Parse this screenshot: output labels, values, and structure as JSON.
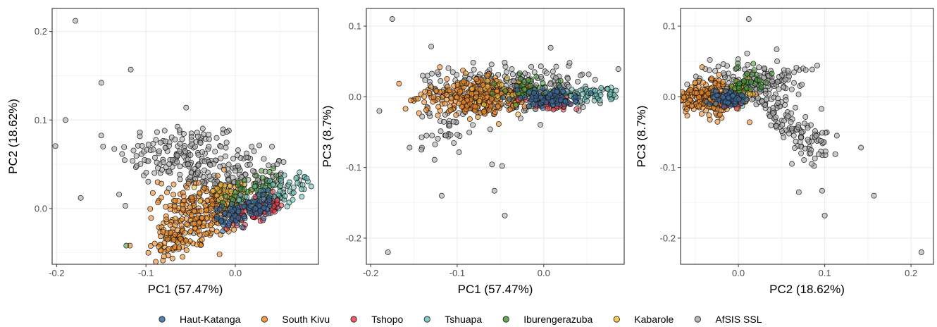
{
  "chart_data": {
    "type": "scatter",
    "legend": {
      "position": "bottom",
      "entries": [
        {
          "name": "Haut-Katanga",
          "color": "#3b6aa0"
        },
        {
          "name": "South Kivu",
          "color": "#f08a24"
        },
        {
          "name": "Tshopo",
          "color": "#e8414f"
        },
        {
          "name": "Tshuapa",
          "color": "#6cc0b8"
        },
        {
          "name": "Iburengerazuba",
          "color": "#4a9a3a"
        },
        {
          "name": "Kabarole",
          "color": "#f2be3a"
        },
        {
          "name": "AfSIS SSL",
          "color": "#a9a9a9"
        }
      ]
    },
    "panels": [
      {
        "xlabel": "PC1 (57.47%)",
        "ylabel": "PC2 (18.62%)",
        "xlim": [
          -0.205,
          0.093
        ],
        "ylim": [
          -0.063,
          0.226
        ],
        "xticks": [
          -0.2,
          -0.1,
          0.0
        ],
        "xtick_labels": [
          "-0.2",
          "-0.1",
          "0.0"
        ],
        "yticks": [
          0.0,
          0.1,
          0.2
        ],
        "ytick_labels": [
          "0.0",
          "0.1",
          "0.2"
        ],
        "grid": true,
        "clusters": [
          {
            "series": "AfSIS SSL",
            "kind": "cloud",
            "center": [
              -0.06,
              0.062
            ],
            "spread": [
              0.035,
              0.018
            ],
            "n": 160
          },
          {
            "series": "AfSIS SSL",
            "kind": "cloud",
            "center": [
              0.0,
              0.035
            ],
            "spread": [
              0.03,
              0.015
            ],
            "n": 120
          },
          {
            "series": "South Kivu",
            "kind": "band",
            "from": [
              -0.09,
              -0.042
            ],
            "to": [
              0.0,
              0.01
            ],
            "width": 0.016,
            "n": 260
          },
          {
            "series": "South Kivu",
            "kind": "cloud",
            "center": [
              -0.045,
              0.01
            ],
            "spread": [
              0.02,
              0.012
            ],
            "n": 60
          },
          {
            "series": "Kabarole",
            "kind": "cloud",
            "center": [
              -0.01,
              0.015
            ],
            "spread": [
              0.015,
              0.008
            ],
            "n": 40
          },
          {
            "series": "Iburengerazuba",
            "kind": "band",
            "from": [
              -0.01,
              0.01
            ],
            "to": [
              0.05,
              0.028
            ],
            "width": 0.01,
            "n": 60
          },
          {
            "series": "Tshuapa",
            "kind": "band",
            "from": [
              0.0,
              0.0
            ],
            "to": [
              0.08,
              0.028
            ],
            "width": 0.008,
            "n": 90
          },
          {
            "series": "Tshopo",
            "kind": "band",
            "from": [
              -0.005,
              -0.012
            ],
            "to": [
              0.05,
              0.005
            ],
            "width": 0.007,
            "n": 70
          },
          {
            "series": "Haut-Katanga",
            "kind": "band",
            "from": [
              -0.02,
              -0.01
            ],
            "to": [
              0.04,
              0.008
            ],
            "width": 0.008,
            "n": 90
          }
        ],
        "points": [
          {
            "series": "AfSIS SSL",
            "x": -0.179,
            "y": 0.212
          },
          {
            "series": "AfSIS SSL",
            "x": -0.19,
            "y": 0.1
          },
          {
            "series": "AfSIS SSL",
            "x": -0.15,
            "y": 0.142
          },
          {
            "series": "AfSIS SSL",
            "x": -0.117,
            "y": 0.157
          },
          {
            "series": "AfSIS SSL",
            "x": -0.173,
            "y": 0.012
          },
          {
            "series": "AfSIS SSL",
            "x": -0.148,
            "y": 0.07
          },
          {
            "series": "AfSIS SSL",
            "x": -0.13,
            "y": 0.016
          },
          {
            "series": "AfSIS SSL",
            "x": -0.055,
            "y": 0.114
          },
          {
            "series": "AfSIS SSL",
            "x": -0.123,
            "y": 0.003
          },
          {
            "series": "South Kivu",
            "x": -0.118,
            "y": -0.042
          },
          {
            "series": "Iburengerazuba",
            "x": -0.122,
            "y": -0.042
          },
          {
            "series": "Tshuapa",
            "x": 0.085,
            "y": 0.025
          },
          {
            "series": "Tshuapa",
            "x": 0.08,
            "y": 0.034
          }
        ]
      },
      {
        "xlabel": "PC1 (57.47%)",
        "ylabel": "PC3 (8.7%)",
        "xlim": [
          -0.205,
          0.093
        ],
        "ylim": [
          -0.237,
          0.125
        ],
        "xticks": [
          -0.2,
          -0.1,
          0.0
        ],
        "xtick_labels": [
          "-0.2",
          "-0.1",
          "0.0"
        ],
        "yticks": [
          -0.2,
          -0.1,
          0.0,
          0.1
        ],
        "ytick_labels": [
          "-0.2",
          "-0.1",
          "0.0",
          "0.1"
        ],
        "grid": true,
        "clusters": [
          {
            "series": "AfSIS SSL",
            "kind": "cloud",
            "center": [
              -0.03,
              0.015
            ],
            "spread": [
              0.045,
              0.017
            ],
            "n": 240
          },
          {
            "series": "AfSIS SSL",
            "kind": "cloud",
            "center": [
              -0.11,
              -0.04
            ],
            "spread": [
              0.02,
              0.025
            ],
            "n": 50
          },
          {
            "series": "South Kivu",
            "kind": "cloud",
            "center": [
              -0.075,
              0.0
            ],
            "spread": [
              0.032,
              0.013
            ],
            "n": 300
          },
          {
            "series": "Iburengerazuba",
            "kind": "cloud",
            "center": [
              -0.01,
              0.008
            ],
            "spread": [
              0.02,
              0.01
            ],
            "n": 50
          },
          {
            "series": "Kabarole",
            "kind": "cloud",
            "center": [
              -0.04,
              0.005
            ],
            "spread": [
              0.02,
              0.01
            ],
            "n": 30
          },
          {
            "series": "Tshuapa",
            "kind": "band",
            "from": [
              0.0,
              -0.002
            ],
            "to": [
              0.085,
              0.006
            ],
            "width": 0.005,
            "n": 80
          },
          {
            "series": "Tshopo",
            "kind": "cloud",
            "center": [
              0.01,
              -0.008
            ],
            "spread": [
              0.015,
              0.005
            ],
            "n": 50
          },
          {
            "series": "Haut-Katanga",
            "kind": "cloud",
            "center": [
              0.005,
              -0.002
            ],
            "spread": [
              0.018,
              0.006
            ],
            "n": 90
          }
        ],
        "points": [
          {
            "series": "AfSIS SSL",
            "x": -0.175,
            "y": 0.11
          },
          {
            "series": "AfSIS SSL",
            "x": -0.19,
            "y": -0.02
          },
          {
            "series": "AfSIS SSL",
            "x": -0.18,
            "y": -0.22
          },
          {
            "series": "AfSIS SSL",
            "x": -0.118,
            "y": -0.14
          },
          {
            "series": "AfSIS SSL",
            "x": -0.057,
            "y": -0.133
          },
          {
            "series": "AfSIS SSL",
            "x": -0.045,
            "y": -0.168
          },
          {
            "series": "AfSIS SSL",
            "x": -0.155,
            "y": -0.072
          },
          {
            "series": "AfSIS SSL",
            "x": -0.13,
            "y": 0.071
          },
          {
            "series": "AfSIS SSL",
            "x": -0.048,
            "y": -0.098
          },
          {
            "series": "South Kivu",
            "x": -0.12,
            "y": 0.042
          }
        ]
      },
      {
        "xlabel": "PC2 (18.62%)",
        "ylabel": "PC3 (8.7%)",
        "xlim": [
          -0.067,
          0.226
        ],
        "ylim": [
          -0.237,
          0.125
        ],
        "xticks": [
          0.0,
          0.1,
          0.2
        ],
        "xtick_labels": [
          "0.0",
          "0.1",
          "0.2"
        ],
        "yticks": [
          -0.2,
          -0.1,
          0.0,
          0.1
        ],
        "ytick_labels": [
          "-0.2",
          "-0.1",
          "0.0",
          "0.1"
        ],
        "grid": true,
        "clusters": [
          {
            "series": "AfSIS SSL",
            "kind": "cloud",
            "center": [
              0.02,
              0.02
            ],
            "spread": [
              0.03,
              0.017
            ],
            "n": 170
          },
          {
            "series": "AfSIS SSL",
            "kind": "band",
            "from": [
              0.02,
              0.0
            ],
            "to": [
              0.1,
              -0.075
            ],
            "width": 0.014,
            "n": 120
          },
          {
            "series": "South Kivu",
            "kind": "cloud",
            "center": [
              -0.03,
              -0.002
            ],
            "spread": [
              0.018,
              0.011
            ],
            "n": 320
          },
          {
            "series": "Iburengerazuba",
            "kind": "cloud",
            "center": [
              0.008,
              0.018
            ],
            "spread": [
              0.012,
              0.012
            ],
            "n": 40
          },
          {
            "series": "Kabarole",
            "kind": "cloud",
            "center": [
              0.005,
              0.005
            ],
            "spread": [
              0.01,
              0.01
            ],
            "n": 25
          },
          {
            "series": "Tshuapa",
            "kind": "cloud",
            "center": [
              -0.005,
              -0.002
            ],
            "spread": [
              0.006,
              0.005
            ],
            "n": 30
          },
          {
            "series": "Tshopo",
            "kind": "cloud",
            "center": [
              -0.01,
              -0.008
            ],
            "spread": [
              0.005,
              0.004
            ],
            "n": 25
          },
          {
            "series": "Haut-Katanga",
            "kind": "cloud",
            "center": [
              -0.012,
              -0.003
            ],
            "spread": [
              0.008,
              0.005
            ],
            "n": 70
          }
        ],
        "points": [
          {
            "series": "AfSIS SSL",
            "x": 0.012,
            "y": 0.11
          },
          {
            "series": "AfSIS SSL",
            "x": 0.212,
            "y": -0.22
          },
          {
            "series": "AfSIS SSL",
            "x": 0.157,
            "y": -0.14
          },
          {
            "series": "AfSIS SSL",
            "x": 0.142,
            "y": -0.072
          },
          {
            "series": "AfSIS SSL",
            "x": 0.114,
            "y": -0.055
          },
          {
            "series": "AfSIS SSL",
            "x": 0.1,
            "y": -0.168
          },
          {
            "series": "AfSIS SSL",
            "x": 0.097,
            "y": -0.133
          },
          {
            "series": "AfSIS SSL",
            "x": 0.07,
            "y": -0.135
          },
          {
            "series": "AfSIS SSL",
            "x": 0.062,
            "y": -0.095
          },
          {
            "series": "AfSIS SSL",
            "x": 0.085,
            "y": -0.095
          },
          {
            "series": "South Kivu",
            "x": -0.042,
            "y": 0.042
          }
        ]
      }
    ]
  }
}
